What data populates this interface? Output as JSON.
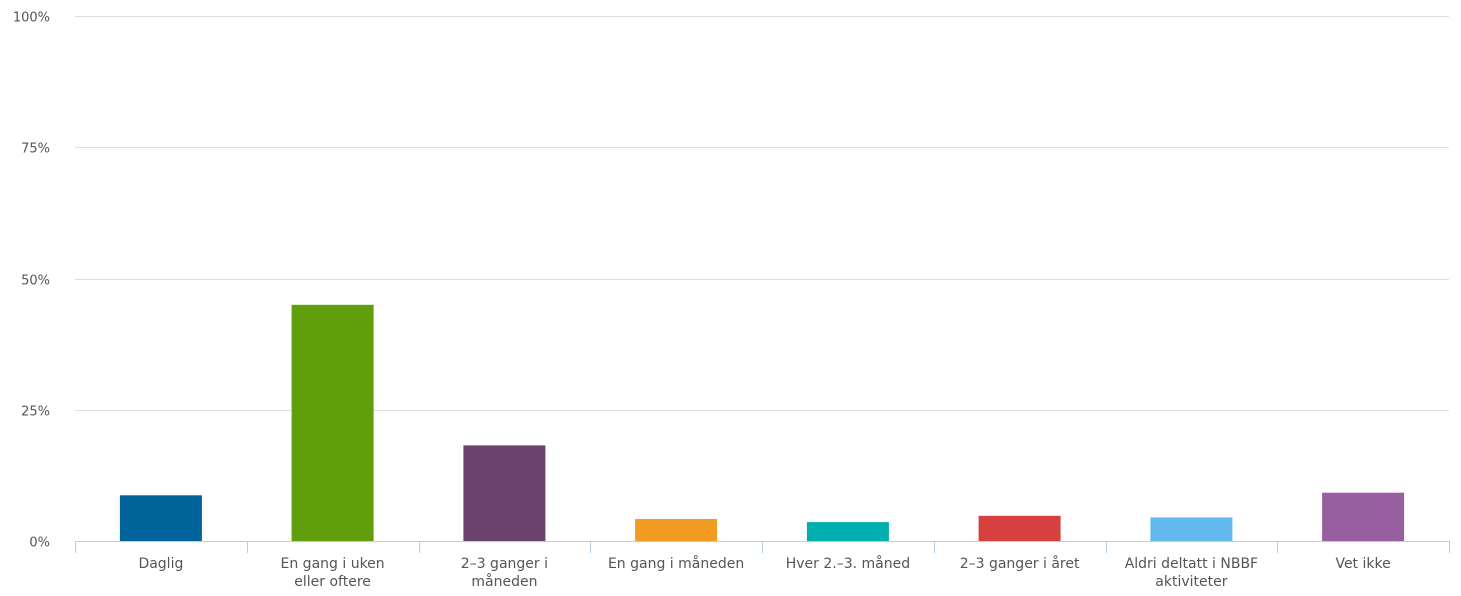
{
  "chart_data": {
    "type": "bar",
    "categories": [
      [
        "Daglig"
      ],
      [
        "En gang i uken",
        "eller oftere"
      ],
      [
        "2–3 ganger i",
        "måneden"
      ],
      [
        "En gang i måneden"
      ],
      [
        "Hver 2.–3. måned"
      ],
      [
        "2–3 ganger i året"
      ],
      [
        "Aldri deltatt i NBBF",
        "aktiviteter"
      ],
      [
        "Vet ikke"
      ]
    ],
    "values": [
      8.7,
      45.0,
      18.2,
      4.2,
      3.6,
      4.8,
      4.5,
      9.2
    ],
    "colors": [
      "#006399",
      "#619e0b",
      "#6b426e",
      "#f19b22",
      "#00aeae",
      "#d6413f",
      "#62b9ee",
      "#985fa0"
    ],
    "yticks": [
      {
        "value": 0,
        "label": "0%"
      },
      {
        "value": 25,
        "label": "25%"
      },
      {
        "value": 50,
        "label": "50%"
      },
      {
        "value": 75,
        "label": "75%"
      },
      {
        "value": 100,
        "label": "100%"
      }
    ],
    "ylim": [
      0,
      100
    ],
    "grid": true,
    "gridColor": "#d9dee3",
    "axisColor": "#b8cfe3"
  }
}
